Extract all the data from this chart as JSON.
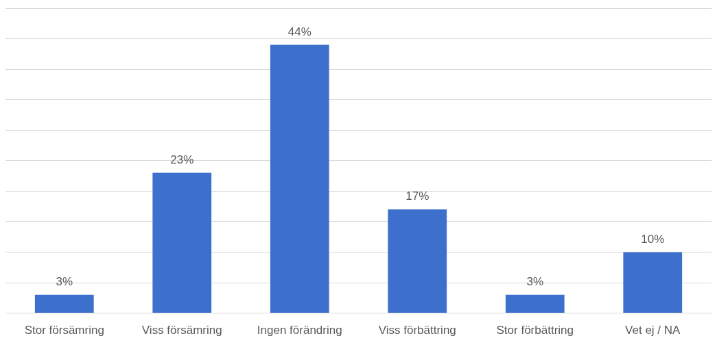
{
  "chart_data": {
    "type": "bar",
    "categories": [
      "Stor försämring",
      "Viss försämring",
      "Ingen förändring",
      "Viss förbättring",
      "Stor förbättring",
      "Vet ej / NA"
    ],
    "values": [
      3,
      23,
      44,
      17,
      3,
      10
    ],
    "value_labels": [
      "3%",
      "23%",
      "44%",
      "17%",
      "3%",
      "10%"
    ],
    "color": "#3d6fcc",
    "ylim": [
      0,
      50
    ],
    "yticks": [
      0,
      5,
      10,
      15,
      20,
      25,
      30,
      35,
      40,
      45,
      50
    ],
    "grid": "y",
    "tick_labels": "x"
  }
}
